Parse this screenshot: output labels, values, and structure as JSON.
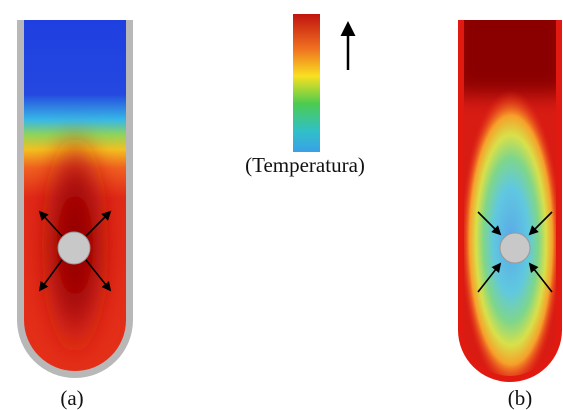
{
  "colorbar": {
    "label": "(Temperatura)"
  },
  "panels": [
    {
      "label": "(a)"
    },
    {
      "label": "(b)"
    }
  ]
}
